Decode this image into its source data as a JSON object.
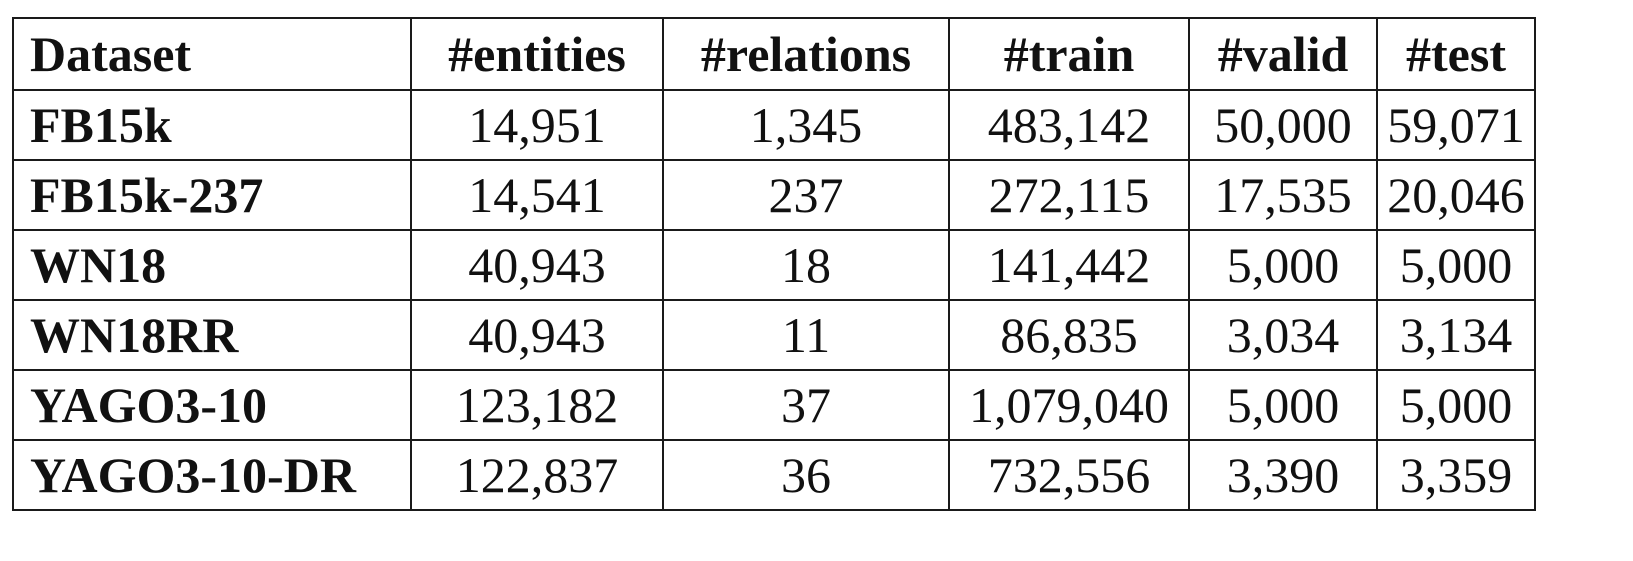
{
  "table": {
    "headers": [
      "Dataset",
      "#entities",
      "#relations",
      "#train",
      "#valid",
      "#test"
    ],
    "rows": [
      [
        "FB15k",
        "14,951",
        "1,345",
        "483,142",
        "50,000",
        "59,071"
      ],
      [
        "FB15k-237",
        "14,541",
        "237",
        "272,115",
        "17,535",
        "20,046"
      ],
      [
        "WN18",
        "40,943",
        "18",
        "141,442",
        "5,000",
        "5,000"
      ],
      [
        "WN18RR",
        "40,943",
        "11",
        "86,835",
        "3,034",
        "3,134"
      ],
      [
        "YAGO3-10",
        "123,182",
        "37",
        "1,079,040",
        "5,000",
        "5,000"
      ],
      [
        "YAGO3-10-DR",
        "122,837",
        "36",
        "732,556",
        "3,390",
        "3,359"
      ]
    ]
  }
}
